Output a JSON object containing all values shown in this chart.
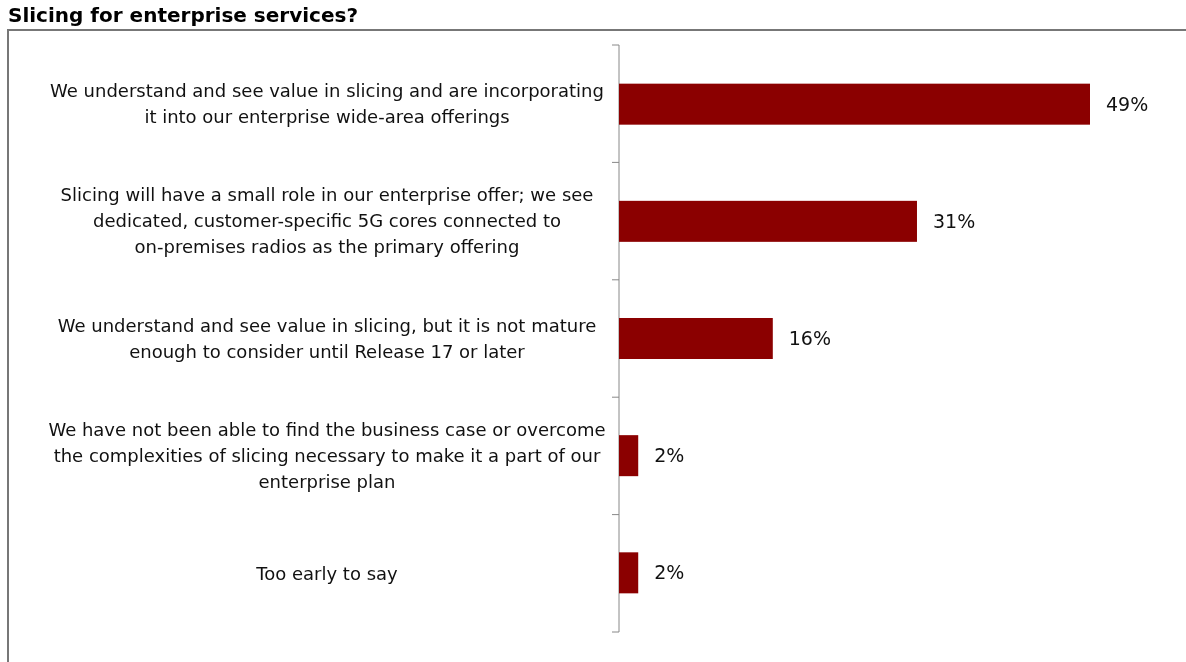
{
  "chart_data": {
    "type": "bar",
    "orientation": "horizontal",
    "title": "Slicing for enterprise services?",
    "categories": [
      "We understand and see value in slicing and are incorporating it into our enterprise wide-area offerings",
      "Slicing will have a small role in our enterprise offer; we see dedicated, customer-specific 5G cores connected to on-premises radios as the primary offering",
      "We understand and see value in slicing, but it is not mature enough to consider until Release 17 or later",
      "We have not been able to find the business case or overcome the complexities of slicing necessary to make it a part of our enterprise plan",
      "Too early to say"
    ],
    "values": [
      49,
      31,
      16,
      2,
      2
    ],
    "value_labels": [
      "49%",
      "31%",
      "16%",
      "2%",
      "2%"
    ],
    "color": "#8b0000"
  }
}
